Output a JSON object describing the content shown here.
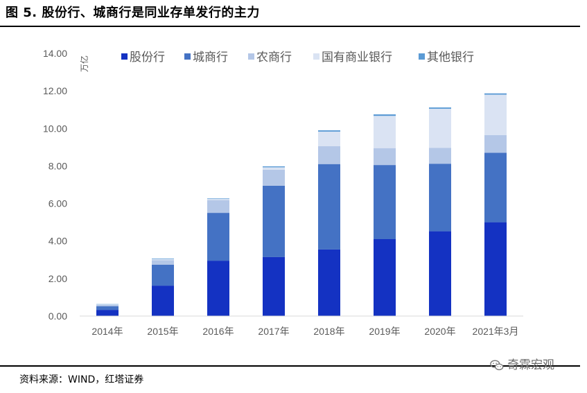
{
  "header": {
    "title": "图 5. 股份行、城商行是同业存单发行的主力"
  },
  "footer": {
    "source": "资料来源：WIND，红塔证券",
    "watermark": "奇霖宏观"
  },
  "chart_data": {
    "type": "bar",
    "stacked": true,
    "ylabel": "万亿",
    "ylim": [
      0,
      14
    ],
    "yticks": [
      "0.00",
      "2.00",
      "4.00",
      "6.00",
      "8.00",
      "10.00",
      "12.00",
      "14.00"
    ],
    "grid": false,
    "legend_position": "top",
    "categories": [
      "2014年",
      "2015年",
      "2016年",
      "2017年",
      "2018年",
      "2019年",
      "2020年",
      "2021年3月"
    ],
    "series": [
      {
        "name": "股份行",
        "color": "#1432c2",
        "values": [
          0.33,
          1.62,
          2.95,
          3.15,
          3.55,
          4.1,
          4.52,
          5.0
        ]
      },
      {
        "name": "城商行",
        "color": "#4472c4",
        "values": [
          0.2,
          1.12,
          2.55,
          3.8,
          4.55,
          3.95,
          3.6,
          3.7
        ]
      },
      {
        "name": "农商行",
        "color": "#b4c7e7",
        "values": [
          0.07,
          0.24,
          0.68,
          0.85,
          0.95,
          0.9,
          0.85,
          0.95
        ]
      },
      {
        "name": "国有商业银行",
        "color": "#dae3f3",
        "values": [
          0.02,
          0.06,
          0.06,
          0.13,
          0.78,
          1.72,
          2.08,
          2.15
        ]
      },
      {
        "name": "其他银行",
        "color": "#5b9bd5",
        "values": [
          0.02,
          0.03,
          0.03,
          0.05,
          0.07,
          0.08,
          0.07,
          0.07
        ]
      }
    ]
  }
}
